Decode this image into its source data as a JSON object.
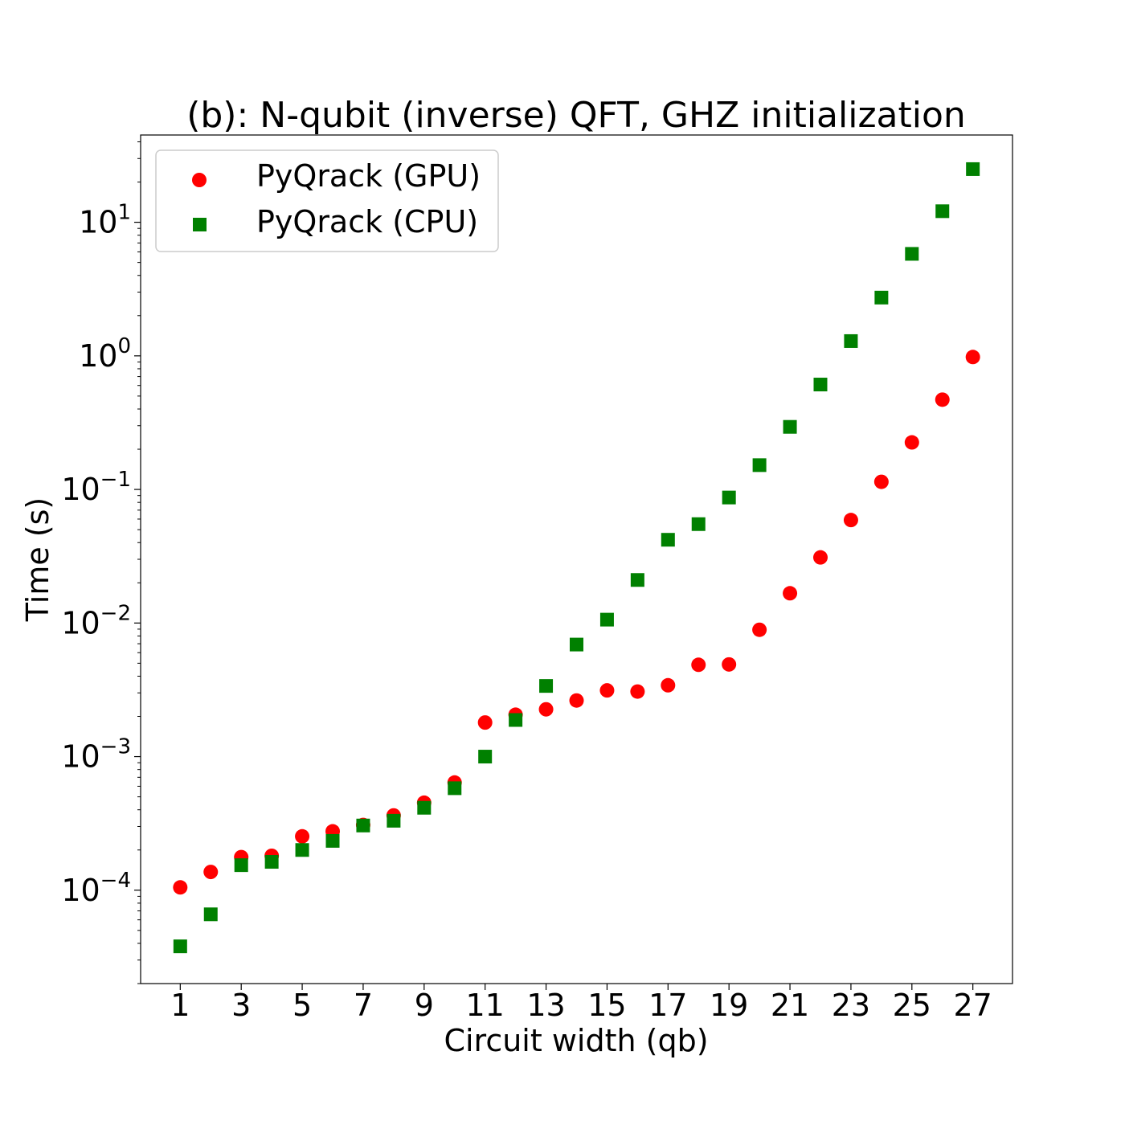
{
  "chart_data": {
    "type": "scatter",
    "title": "(b): N-qubit (inverse) QFT, GHZ initialization",
    "xlabel": "Circuit width (qb)",
    "ylabel": "Time (s)",
    "x_ticks": [
      "1",
      "3",
      "5",
      "7",
      "9",
      "11",
      "13",
      "15",
      "17",
      "19",
      "21",
      "23",
      "25",
      "27"
    ],
    "y_scale": "log",
    "y_ticks": [
      {
        "value": 0.0001,
        "base": "10",
        "exp": "−4"
      },
      {
        "value": 0.001,
        "base": "10",
        "exp": "−3"
      },
      {
        "value": 0.01,
        "base": "10",
        "exp": "−2"
      },
      {
        "value": 0.1,
        "base": "10",
        "exp": "−1"
      },
      {
        "value": 1,
        "base": "10",
        "exp": "0"
      },
      {
        "value": 10,
        "base": "10",
        "exp": "1"
      }
    ],
    "xlim": [
      -0.3,
      28.3
    ],
    "ylim": [
      2e-05,
      45
    ],
    "grid": false,
    "legend_position": "top-left",
    "series": [
      {
        "name": "PyQrack (GPU)",
        "color": "#ff0000",
        "marker": "circle",
        "x": [
          1,
          2,
          3,
          4,
          5,
          6,
          7,
          8,
          9,
          10,
          11,
          12,
          13,
          14,
          15,
          16,
          17,
          18,
          19,
          20,
          21,
          22,
          23,
          24,
          25,
          26,
          27
        ],
        "y": [
          0.000105,
          0.000137,
          0.000177,
          0.000181,
          0.000253,
          0.000276,
          0.000308,
          0.000363,
          0.000452,
          0.00064,
          0.0018,
          0.00206,
          0.00226,
          0.00263,
          0.00313,
          0.00307,
          0.00342,
          0.00487,
          0.0049,
          0.0089,
          0.0167,
          0.031,
          0.059,
          0.114,
          0.225,
          0.47,
          0.98
        ]
      },
      {
        "name": "PyQrack (CPU)",
        "color": "#008000",
        "marker": "square",
        "x": [
          1,
          2,
          3,
          4,
          5,
          6,
          7,
          8,
          9,
          10,
          11,
          12,
          13,
          14,
          15,
          16,
          17,
          18,
          19,
          20,
          21,
          22,
          23,
          24,
          25,
          26,
          27
        ],
        "y": [
          3.8e-05,
          6.6e-05,
          0.000154,
          0.000163,
          0.0002,
          0.000234,
          0.000305,
          0.000331,
          0.000414,
          0.00058,
          0.001,
          0.00188,
          0.00338,
          0.0069,
          0.0106,
          0.021,
          0.042,
          0.055,
          0.087,
          0.152,
          0.294,
          0.61,
          1.29,
          2.73,
          5.8,
          12.1,
          25
        ]
      }
    ]
  }
}
